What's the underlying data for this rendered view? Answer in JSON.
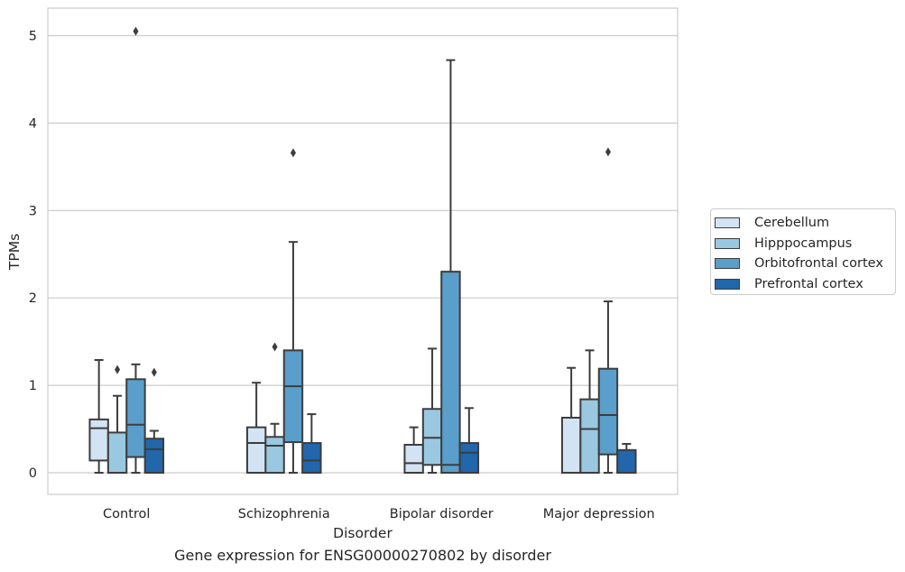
{
  "chart_data": {
    "type": "box",
    "title": "",
    "caption": "Gene expression for ENSG00000270802 by disorder",
    "xlabel": "Disorder",
    "ylabel": "TPMs",
    "ylim": [
      -0.25,
      5.3
    ],
    "yticks": [
      0,
      1,
      2,
      3,
      4,
      5
    ],
    "ytick_labels": [
      "0",
      "1",
      "2",
      "3",
      "4",
      "5"
    ],
    "grid": "horizontal",
    "legend_position": "right",
    "categories": [
      "Control",
      "Schizophrenia",
      "Bipolar disorder",
      "Major depression"
    ],
    "series": [
      {
        "name": "Cerebellum",
        "color": "#d2e3f3",
        "boxes": [
          {
            "whislo": 0,
            "q1": 0.14,
            "med": 0.51,
            "q3": 0.61,
            "whishi": 1.29,
            "fliers": []
          },
          {
            "whislo": 0,
            "q1": 0,
            "med": 0.34,
            "q3": 0.52,
            "whishi": 1.03,
            "fliers": []
          },
          {
            "whislo": 0,
            "q1": 0,
            "med": 0.11,
            "q3": 0.32,
            "whishi": 0.52,
            "fliers": []
          },
          {
            "whislo": 0,
            "q1": 0,
            "med": 0,
            "q3": 0.63,
            "whishi": 1.2,
            "fliers": []
          }
        ]
      },
      {
        "name": "Hipppocampus",
        "color": "#9ac8e0",
        "boxes": [
          {
            "whislo": 0,
            "q1": 0,
            "med": 0,
            "q3": 0.46,
            "whishi": 0.88,
            "fliers": [
              1.18
            ]
          },
          {
            "whislo": 0,
            "q1": 0,
            "med": 0.31,
            "q3": 0.41,
            "whishi": 0.56,
            "fliers": [
              1.44
            ]
          },
          {
            "whislo": 0,
            "q1": 0.09,
            "med": 0.4,
            "q3": 0.73,
            "whishi": 1.42,
            "fliers": []
          },
          {
            "whislo": 0,
            "q1": 0,
            "med": 0.5,
            "q3": 0.84,
            "whishi": 1.4,
            "fliers": []
          }
        ]
      },
      {
        "name": "Orbitofrontal cortex",
        "color": "#5a9ecb",
        "boxes": [
          {
            "whislo": 0,
            "q1": 0.18,
            "med": 0.55,
            "q3": 1.07,
            "whishi": 1.24,
            "fliers": [
              5.05
            ]
          },
          {
            "whislo": 0,
            "q1": 0.35,
            "med": 0.99,
            "q3": 1.4,
            "whishi": 2.64,
            "fliers": [
              3.66
            ]
          },
          {
            "whislo": 0,
            "q1": 0,
            "med": 0.09,
            "q3": 2.3,
            "whishi": 4.72,
            "fliers": []
          },
          {
            "whislo": 0,
            "q1": 0.21,
            "med": 0.66,
            "q3": 1.19,
            "whishi": 1.96,
            "fliers": [
              3.67
            ]
          }
        ]
      },
      {
        "name": "Prefrontal cortex",
        "color": "#2266ac",
        "boxes": [
          {
            "whislo": 0,
            "q1": 0,
            "med": 0.27,
            "q3": 0.39,
            "whishi": 0.48,
            "fliers": [
              1.15
            ]
          },
          {
            "whislo": 0,
            "q1": 0,
            "med": 0.14,
            "q3": 0.34,
            "whishi": 0.67,
            "fliers": []
          },
          {
            "whislo": 0,
            "q1": 0,
            "med": 0.23,
            "q3": 0.34,
            "whishi": 0.74,
            "fliers": []
          },
          {
            "whislo": 0,
            "q1": 0,
            "med": 0,
            "q3": 0.26,
            "whishi": 0.33,
            "fliers": []
          }
        ]
      }
    ]
  }
}
